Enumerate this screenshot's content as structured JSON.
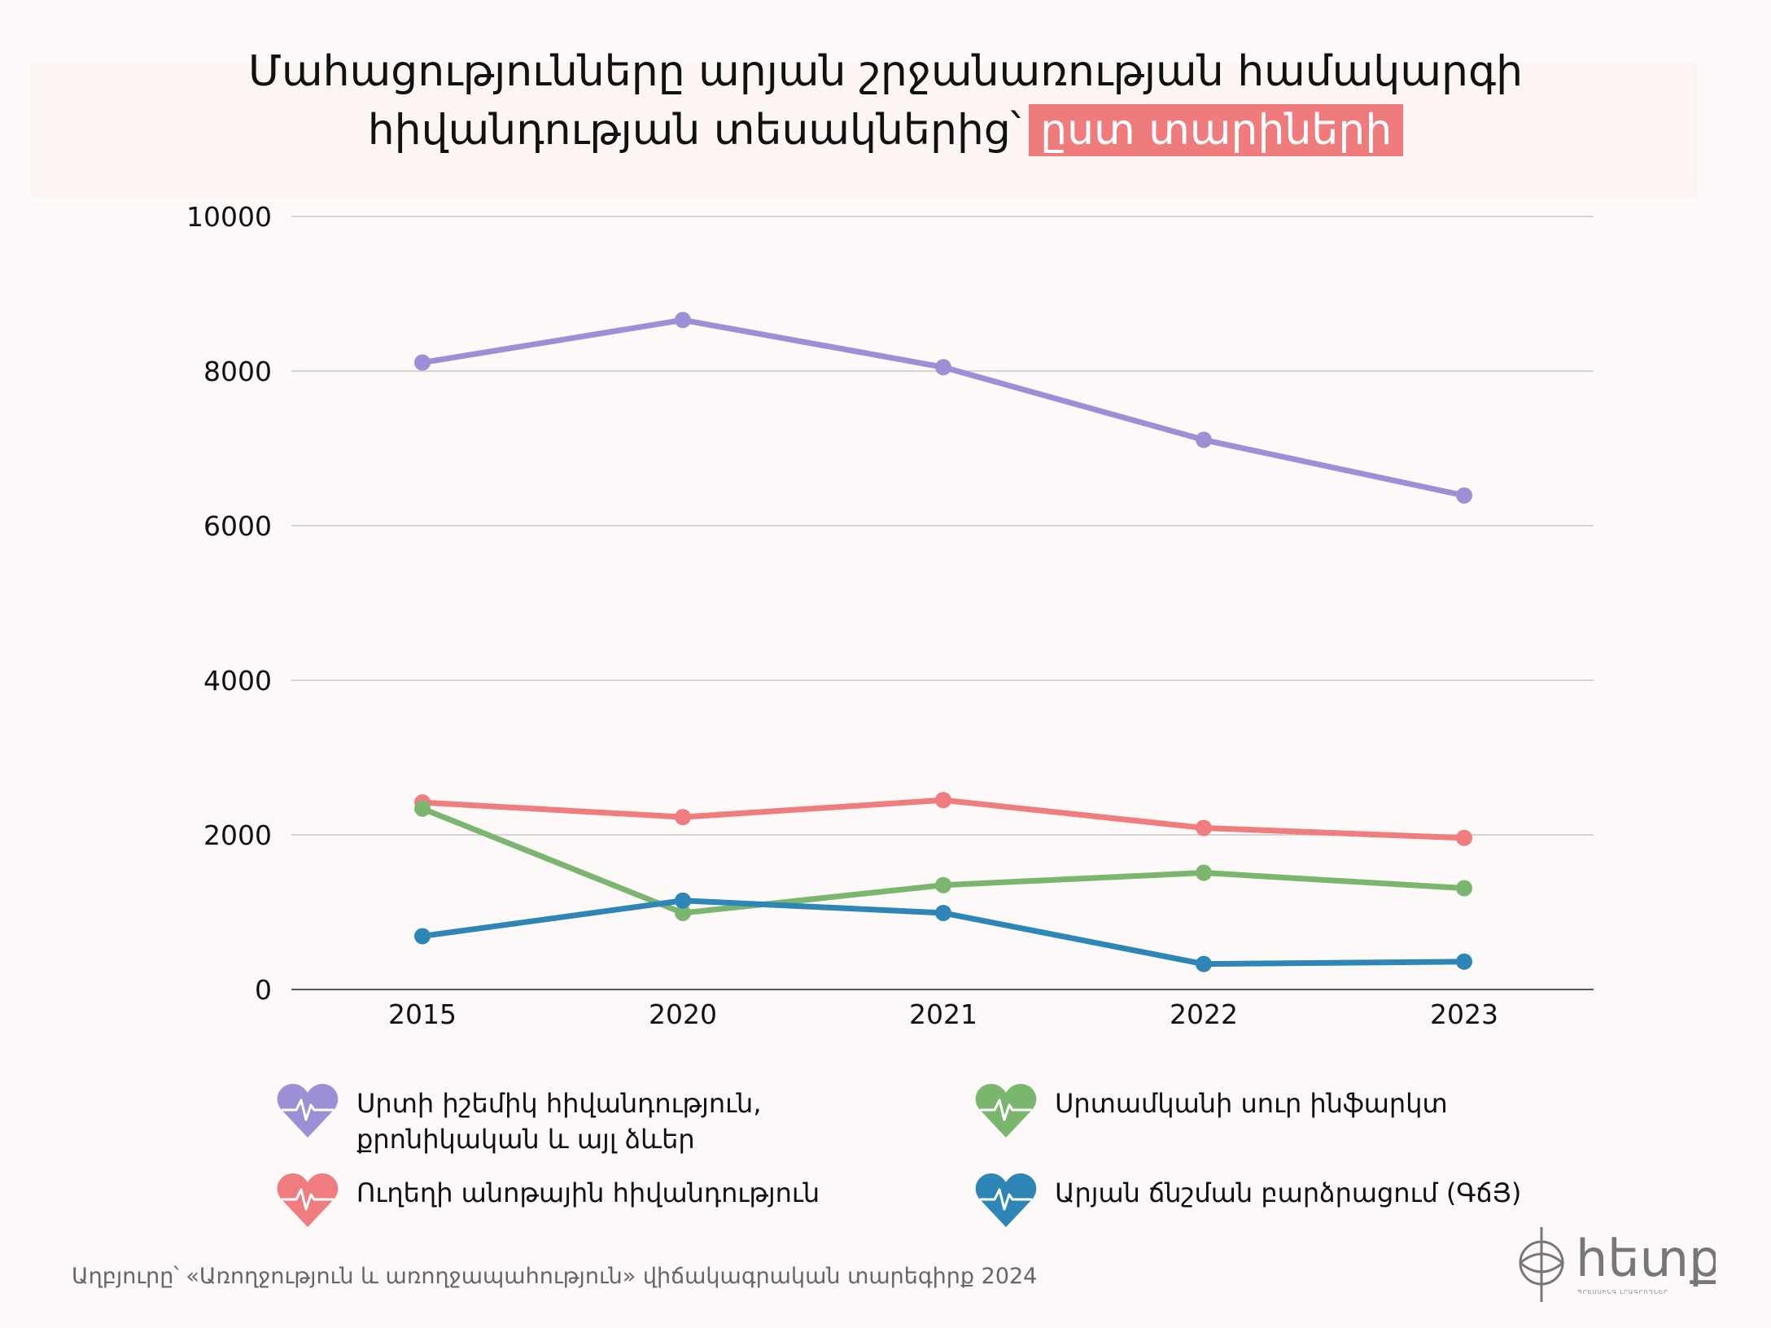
{
  "title": {
    "line1": "Մահացությունները արյան շրջանառության համակարգի",
    "line2": "հիվանդության տեսակներից՝",
    "highlight": "ըստ տարիների"
  },
  "colors": {
    "background": "#fdf9f8",
    "highlight": "#f07b7d",
    "purple": "#9d8fd6",
    "red": "#ef7c7e",
    "green": "#7bb66f",
    "blue": "#2e86b6"
  },
  "chart_data": {
    "type": "line",
    "categories": [
      "2015",
      "2020",
      "2021",
      "2022",
      "2023"
    ],
    "ylim": [
      0,
      10000
    ],
    "yticks": [
      "0",
      "2000",
      "4000",
      "6000",
      "8000",
      "10000"
    ],
    "grid": true,
    "legend_position": "bottom",
    "series": [
      {
        "name": "Սրտի իշեմիկ հիվանդություն,\nքրոնիկական և այլ ձևեր",
        "color": "#9d8fd6",
        "values": [
          8110,
          8660,
          8050,
          7110,
          6390
        ]
      },
      {
        "name": "Ուղեղի անոթային հիվանդություն",
        "color": "#ef7c7e",
        "values": [
          2420,
          2230,
          2450,
          2090,
          1960
        ]
      },
      {
        "name": "Սրտամկանի սուր ինֆարկտ",
        "color": "#7bb66f",
        "values": [
          2340,
          990,
          1350,
          1510,
          1310
        ]
      },
      {
        "name": "Արյան ճնշման բարձրացում (ԳճՅ)",
        "color": "#2e86b6",
        "values": [
          690,
          1150,
          990,
          330,
          360
        ]
      }
    ]
  },
  "source": "Աղբյուրը՝ «Առողջություն և առողջապահություն» վիճակագրական տարեգիրք 2024",
  "logo": {
    "text": "hետք",
    "subtitle": "ՊՐԵՍՍԻՆԳ ԼՐԱԳՐՈՂՆԵՐ"
  }
}
